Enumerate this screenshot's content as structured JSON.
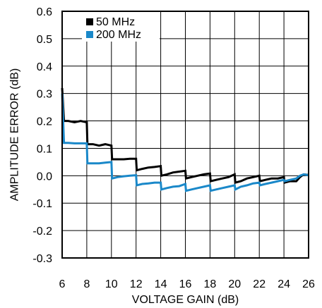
{
  "chart_data": {
    "type": "line",
    "title": "",
    "xlabel": "VOLTAGE GAIN (dB)",
    "ylabel": "AMPLITUDE ERROR (dB)",
    "xlim": [
      6,
      26
    ],
    "ylim": [
      -0.3,
      0.6
    ],
    "x_ticks": [
      6,
      8,
      10,
      12,
      14,
      16,
      18,
      20,
      22,
      24,
      26
    ],
    "x_tick_labels": [
      "6",
      "8",
      "10",
      "12",
      "14",
      "16",
      "18",
      "20",
      "22",
      "24",
      "26"
    ],
    "y_ticks": [
      -0.3,
      -0.2,
      -0.1,
      0.0,
      0.1,
      0.2,
      0.3,
      0.4,
      0.5,
      0.6
    ],
    "y_tick_labels": [
      "-0.3",
      "-0.2",
      "-0.1",
      "0.0",
      "0.1",
      "0.2",
      "0.3",
      "0.4",
      "0.5",
      "0.6"
    ],
    "grid": true,
    "legend_position": "top-left",
    "series": [
      {
        "name": "50 MHz",
        "color": "#000000",
        "points": [
          [
            6.0,
            0.32
          ],
          [
            6.15,
            0.2
          ],
          [
            6.5,
            0.2
          ],
          [
            7.0,
            0.195
          ],
          [
            7.5,
            0.2
          ],
          [
            8.0,
            0.195
          ],
          [
            8.05,
            0.115
          ],
          [
            8.5,
            0.115
          ],
          [
            9.0,
            0.11
          ],
          [
            9.5,
            0.115
          ],
          [
            10.0,
            0.11
          ],
          [
            10.05,
            0.06
          ],
          [
            10.5,
            0.06
          ],
          [
            11.0,
            0.06
          ],
          [
            11.5,
            0.062
          ],
          [
            12.0,
            0.062
          ],
          [
            12.05,
            0.02
          ],
          [
            12.5,
            0.025
          ],
          [
            13.0,
            0.03
          ],
          [
            13.5,
            0.032
          ],
          [
            14.0,
            0.035
          ],
          [
            14.05,
            0.0
          ],
          [
            14.5,
            0.005
          ],
          [
            15.0,
            0.012
          ],
          [
            15.5,
            0.015
          ],
          [
            16.0,
            0.018
          ],
          [
            16.05,
            -0.01
          ],
          [
            16.5,
            -0.005
          ],
          [
            17.0,
            0.0
          ],
          [
            17.5,
            0.005
          ],
          [
            18.0,
            0.008
          ],
          [
            18.05,
            -0.02
          ],
          [
            18.5,
            -0.015
          ],
          [
            19.0,
            -0.01
          ],
          [
            19.5,
            -0.005
          ],
          [
            20.0,
            0.005
          ],
          [
            20.05,
            -0.025
          ],
          [
            20.5,
            -0.02
          ],
          [
            21.0,
            -0.01
          ],
          [
            21.5,
            -0.005
          ],
          [
            22.0,
            0.0
          ],
          [
            22.05,
            -0.02
          ],
          [
            22.5,
            -0.015
          ],
          [
            23.0,
            -0.01
          ],
          [
            23.5,
            -0.01
          ],
          [
            24.0,
            -0.005
          ],
          [
            24.05,
            -0.025
          ],
          [
            24.5,
            -0.02
          ],
          [
            25.0,
            -0.02
          ],
          [
            25.3,
            -0.005
          ],
          [
            25.6,
            0.005
          ],
          [
            26.0,
            0.003
          ]
        ]
      },
      {
        "name": "200 MHz",
        "color": "#1a88c9",
        "points": [
          [
            6.0,
            0.3
          ],
          [
            6.15,
            0.12
          ],
          [
            6.5,
            0.12
          ],
          [
            7.0,
            0.118
          ],
          [
            7.5,
            0.118
          ],
          [
            8.0,
            0.118
          ],
          [
            8.05,
            0.045
          ],
          [
            8.5,
            0.045
          ],
          [
            9.0,
            0.045
          ],
          [
            9.5,
            0.048
          ],
          [
            10.0,
            0.05
          ],
          [
            10.05,
            -0.01
          ],
          [
            10.5,
            -0.005
          ],
          [
            11.0,
            -0.002
          ],
          [
            11.5,
            0.0
          ],
          [
            12.0,
            0.002
          ],
          [
            12.05,
            -0.035
          ],
          [
            12.5,
            -0.03
          ],
          [
            13.0,
            -0.028
          ],
          [
            13.5,
            -0.025
          ],
          [
            14.0,
            -0.025
          ],
          [
            14.05,
            -0.05
          ],
          [
            14.5,
            -0.045
          ],
          [
            15.0,
            -0.04
          ],
          [
            15.5,
            -0.038
          ],
          [
            16.0,
            -0.03
          ],
          [
            16.05,
            -0.055
          ],
          [
            16.5,
            -0.05
          ],
          [
            17.0,
            -0.045
          ],
          [
            17.5,
            -0.04
          ],
          [
            18.0,
            -0.035
          ],
          [
            18.05,
            -0.055
          ],
          [
            18.5,
            -0.05
          ],
          [
            19.0,
            -0.045
          ],
          [
            19.5,
            -0.04
          ],
          [
            20.0,
            -0.035
          ],
          [
            20.05,
            -0.05
          ],
          [
            20.5,
            -0.04
          ],
          [
            21.0,
            -0.035
          ],
          [
            21.5,
            -0.028
          ],
          [
            22.0,
            -0.025
          ],
          [
            22.05,
            -0.035
          ],
          [
            22.5,
            -0.03
          ],
          [
            23.0,
            -0.025
          ],
          [
            23.5,
            -0.02
          ],
          [
            24.0,
            -0.015
          ],
          [
            24.05,
            -0.02
          ],
          [
            24.5,
            -0.015
          ],
          [
            25.0,
            -0.01
          ],
          [
            25.3,
            0.0
          ],
          [
            25.6,
            0.005
          ],
          [
            26.0,
            0.002
          ]
        ]
      }
    ]
  }
}
